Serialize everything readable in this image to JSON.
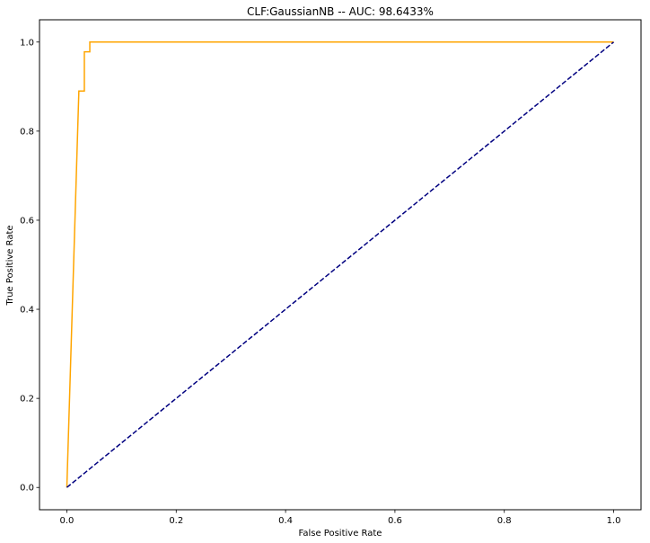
{
  "chart_data": {
    "type": "line",
    "title": "CLF:GaussianNB -- AUC: 98.6433%",
    "xlabel": "False Positive Rate",
    "ylabel": "True Positive Rate",
    "xlim": [
      -0.05,
      1.05
    ],
    "ylim": [
      -0.05,
      1.05
    ],
    "xticks": [
      0.0,
      0.2,
      0.4,
      0.6,
      0.8,
      1.0
    ],
    "yticks": [
      0.0,
      0.2,
      0.4,
      0.6,
      0.8,
      1.0
    ],
    "tick_labels": [
      "0.0",
      "0.2",
      "0.4",
      "0.6",
      "0.8",
      "1.0"
    ],
    "grid": false,
    "series": [
      {
        "color": "#ffa500",
        "linestyle": "solid",
        "x": [
          0.0,
          0.022,
          0.022,
          0.032,
          0.032,
          0.042,
          0.042,
          1.0
        ],
        "y": [
          0.0,
          0.89,
          0.89,
          0.89,
          0.978,
          0.978,
          1.0,
          1.0
        ]
      },
      {
        "color": "#000080",
        "linestyle": "dashed",
        "x": [
          0.0,
          1.0
        ],
        "y": [
          0.0,
          1.0
        ]
      }
    ]
  }
}
